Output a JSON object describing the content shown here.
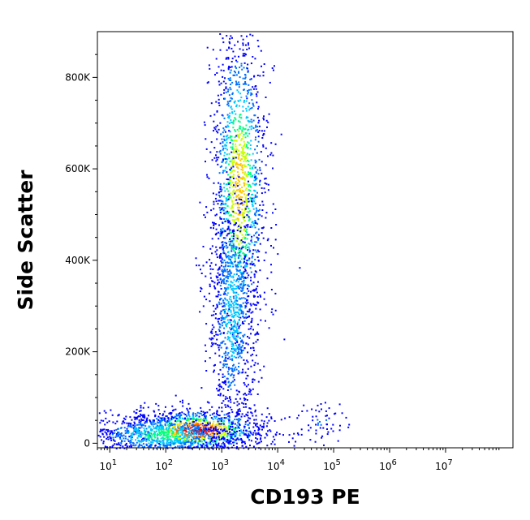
{
  "chart_data": {
    "type": "scatter",
    "title": "",
    "xlabel": "CD193 PE",
    "ylabel": "Side Scatter",
    "x_scale": "log",
    "y_scale": "linear",
    "xlim": [
      6,
      160000000
    ],
    "ylim": [
      -10000,
      900000
    ],
    "grid": false,
    "x_ticks": [
      {
        "value": 10,
        "base": "10",
        "exp": "1"
      },
      {
        "value": 100,
        "base": "10",
        "exp": "2"
      },
      {
        "value": 1000,
        "base": "10",
        "exp": "3"
      },
      {
        "value": 10000,
        "base": "10",
        "exp": "4"
      },
      {
        "value": 100000,
        "base": "10",
        "exp": "5"
      },
      {
        "value": 1000000,
        "base": "10",
        "exp": "6"
      },
      {
        "value": 10000000,
        "base": "10",
        "exp": "7"
      }
    ],
    "y_ticks": [
      {
        "value": 0,
        "label": "0"
      },
      {
        "value": 200000,
        "label": "200K"
      },
      {
        "value": 400000,
        "label": "400K"
      },
      {
        "value": 600000,
        "label": "600K"
      },
      {
        "value": 800000,
        "label": "800K"
      }
    ],
    "colormap": [
      "#0000ff",
      "#0070ff",
      "#00c8ff",
      "#00ff80",
      "#c8ff00",
      "#ffc800",
      "#ff6000",
      "#e00000"
    ],
    "populations": [
      {
        "x_center": 350,
        "y_center": 30000,
        "x_spread_decades": 0.35,
        "y_spread": 15000,
        "count": 1000,
        "peak_density": 1.0
      },
      {
        "x_center": 80,
        "y_center": 20000,
        "x_spread_decades": 0.4,
        "y_spread": 15000,
        "count": 900,
        "peak_density": 0.45
      },
      {
        "x_center": 2000,
        "y_center": 560000,
        "x_spread_decades": 0.14,
        "y_spread": 120000,
        "count": 1500,
        "peak_density": 0.7
      },
      {
        "x_center": 1500,
        "y_center": 280000,
        "x_spread_decades": 0.12,
        "y_spread": 90000,
        "count": 900,
        "peak_density": 0.35
      },
      {
        "x_center": 60000,
        "y_center": 50000,
        "x_spread_decades": 0.12,
        "y_spread": 15000,
        "count": 60,
        "peak_density": 0.15
      }
    ]
  }
}
